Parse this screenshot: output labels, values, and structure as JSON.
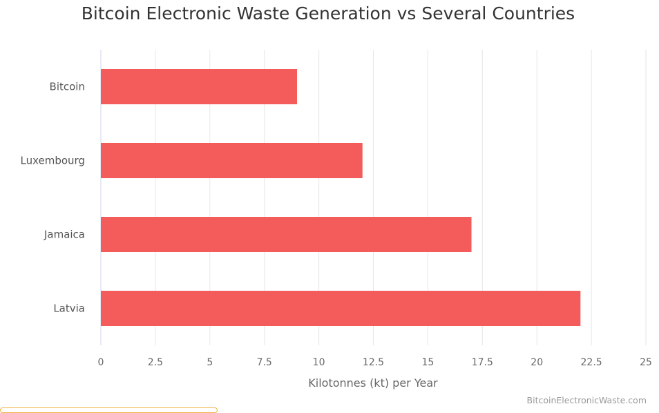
{
  "chart_data": {
    "type": "bar",
    "orientation": "horizontal",
    "title": "Bitcoin Electronic Waste Generation vs Several Countries",
    "categories": [
      "Bitcoin",
      "Luxembourg",
      "Jamaica",
      "Latvia"
    ],
    "values": [
      9,
      12,
      17,
      22
    ],
    "xlabel": "Kilotonnes (kt) per Year",
    "ylabel": "",
    "xlim": [
      0,
      25
    ],
    "xticks": [
      "0",
      "2.5",
      "5",
      "7.5",
      "10",
      "12.5",
      "15",
      "17.5",
      "20",
      "22.5",
      "25"
    ],
    "grid": true,
    "bar_color": "#f45b5b",
    "credit": "BitcoinElectronicWaste.com"
  }
}
